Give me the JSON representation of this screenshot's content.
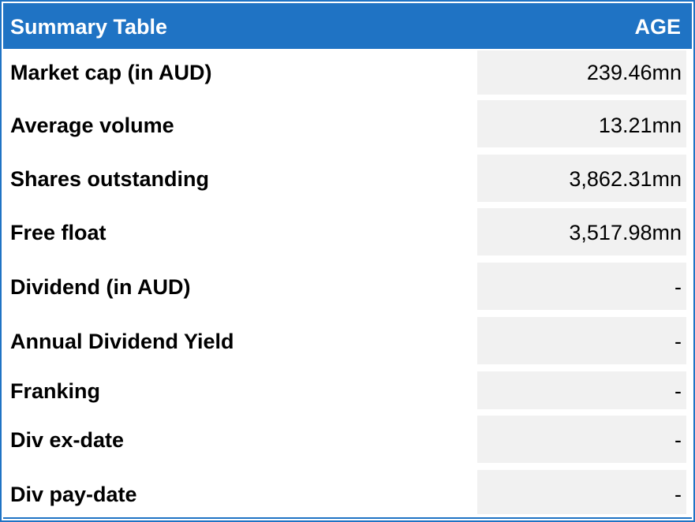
{
  "header": {
    "title": "Summary Table",
    "column": "AGE"
  },
  "rows": [
    {
      "label": "Market cap (in AUD)",
      "value": "239.46mn"
    },
    {
      "label": "Average volume",
      "value": "13.21mn"
    },
    {
      "label": "Shares outstanding",
      "value": "3,862.31mn"
    },
    {
      "label": "Free float",
      "value": "3,517.98mn"
    },
    {
      "label": "Dividend (in AUD)",
      "value": "-"
    },
    {
      "label": "Annual Dividend Yield",
      "value": "-"
    },
    {
      "label": "Franking",
      "value": "-"
    },
    {
      "label": "Div ex-date",
      "value": "-"
    },
    {
      "label": "Div pay-date",
      "value": "-"
    }
  ],
  "colors": {
    "header_bg": "#1f73c4",
    "cell_bg": "#f1f1f1",
    "text": "#000000"
  }
}
